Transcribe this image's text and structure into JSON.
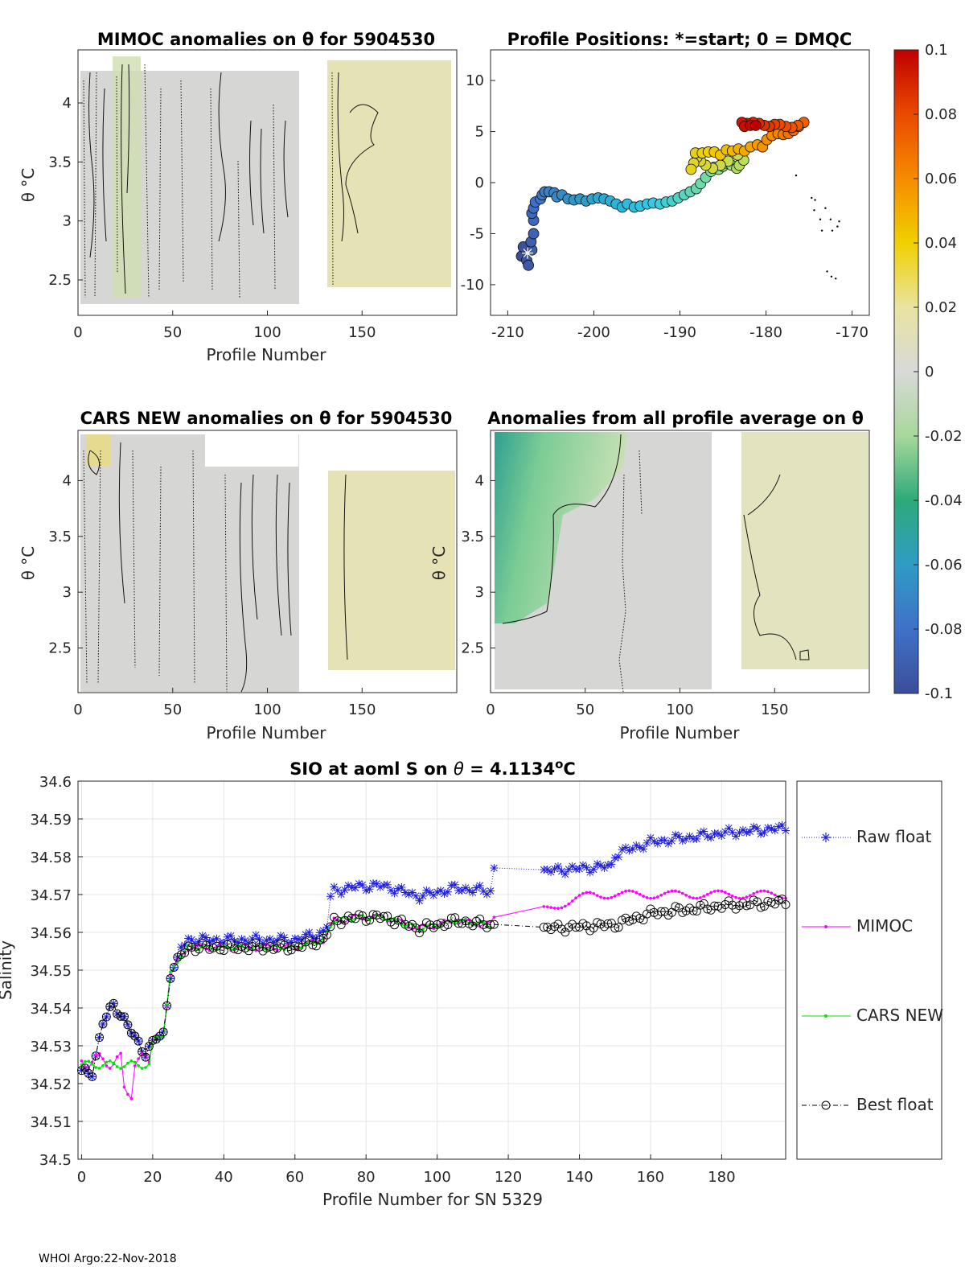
{
  "footer": "WHOI Argo:22-Nov-2018",
  "colorbar": {
    "ticks": [
      "0.1",
      "0.08",
      "0.06",
      "0.04",
      "0.02",
      "0",
      "-0.02",
      "-0.04",
      "-0.06",
      "-0.08",
      "-0.1"
    ],
    "range": [
      -0.1,
      0.1
    ]
  },
  "chart_data": [
    {
      "id": "mimoc",
      "type": "heatmap",
      "title": "MIMOC anomalies on θ  for 5904530",
      "xlabel": "Profile Number",
      "ylabel": "θ °C",
      "xlim": [
        0,
        200
      ],
      "ylim": [
        2.2,
        4.45
      ],
      "xticks": [
        "0",
        "50",
        "100",
        "150"
      ],
      "yticks": [
        "2.5",
        "3",
        "3.5",
        "4"
      ],
      "gap_profiles": [
        116,
        130
      ]
    },
    {
      "id": "positions",
      "type": "scatter",
      "title": "Profile Positions: *=start; 0 = DMQC",
      "xlim": [
        -212,
        -168
      ],
      "ylim": [
        -13,
        13
      ],
      "xticks": [
        "-210",
        "-200",
        "-190",
        "-180",
        "-170"
      ],
      "yticks": [
        "10",
        "5",
        "0",
        "-5",
        "-10"
      ],
      "start": [
        -207.7,
        -6.9
      ],
      "track": [
        [
          -208.4,
          -7.2
        ],
        [
          -208.2,
          -6.3
        ],
        [
          -207.8,
          -7.6
        ],
        [
          -207.6,
          -8.1
        ],
        [
          -207.2,
          -6.6
        ],
        [
          -207.3,
          -5.8
        ],
        [
          -207.0,
          -5.0
        ],
        [
          -207.0,
          -3.7
        ],
        [
          -207.2,
          -3.0
        ],
        [
          -207.0,
          -2.5
        ],
        [
          -206.8,
          -1.9
        ],
        [
          -206.2,
          -1.6
        ],
        [
          -206.0,
          -1.2
        ],
        [
          -205.7,
          -0.9
        ],
        [
          -205.2,
          -0.9
        ],
        [
          -204.6,
          -1.0
        ],
        [
          -204.3,
          -1.4
        ],
        [
          -203.7,
          -1.2
        ],
        [
          -203.0,
          -1.6
        ],
        [
          -202.3,
          -1.7
        ],
        [
          -201.6,
          -1.6
        ],
        [
          -200.9,
          -1.8
        ],
        [
          -200.2,
          -1.6
        ],
        [
          -199.5,
          -1.5
        ],
        [
          -198.8,
          -1.6
        ],
        [
          -198.1,
          -1.8
        ],
        [
          -197.4,
          -2.1
        ],
        [
          -196.7,
          -2.4
        ],
        [
          -196.1,
          -2.1
        ],
        [
          -195.3,
          -2.4
        ],
        [
          -194.6,
          -2.3
        ],
        [
          -193.8,
          -2.1
        ],
        [
          -193.1,
          -2.0
        ],
        [
          -192.3,
          -2.1
        ],
        [
          -191.6,
          -1.9
        ],
        [
          -190.9,
          -1.8
        ],
        [
          -190.2,
          -1.5
        ],
        [
          -189.5,
          -1.2
        ],
        [
          -188.8,
          -0.9
        ],
        [
          -188.1,
          -0.6
        ],
        [
          -187.6,
          -0.1
        ],
        [
          -187.0,
          0.5
        ],
        [
          -186.4,
          1.1
        ],
        [
          -186.0,
          1.5
        ],
        [
          -185.5,
          1.3
        ],
        [
          -185.0,
          1.6
        ],
        [
          -184.5,
          1.9
        ],
        [
          -184.0,
          1.7
        ],
        [
          -183.4,
          1.4
        ],
        [
          -183.1,
          1.7
        ],
        [
          -182.6,
          2.2
        ],
        [
          -183.3,
          2.7
        ],
        [
          -184.4,
          2.1
        ],
        [
          -185.3,
          1.7
        ],
        [
          -186.2,
          1.4
        ],
        [
          -187.0,
          1.7
        ],
        [
          -187.6,
          2.1
        ],
        [
          -188.0,
          2.5
        ],
        [
          -188.4,
          1.9
        ],
        [
          -188.7,
          1.3
        ],
        [
          -188.2,
          2.9
        ],
        [
          -187.4,
          2.9
        ],
        [
          -186.7,
          3.0
        ],
        [
          -186.0,
          3.0
        ],
        [
          -185.3,
          2.7
        ],
        [
          -184.6,
          3.2
        ],
        [
          -183.9,
          3.1
        ],
        [
          -183.2,
          3.3
        ],
        [
          -182.5,
          3.1
        ],
        [
          -181.8,
          3.5
        ],
        [
          -181.0,
          3.7
        ],
        [
          -180.4,
          3.5
        ],
        [
          -179.9,
          4.2
        ],
        [
          -179.3,
          4.6
        ],
        [
          -178.6,
          4.8
        ],
        [
          -178.0,
          4.7
        ],
        [
          -177.4,
          4.8
        ],
        [
          -176.8,
          5.1
        ],
        [
          -176.2,
          5.5
        ],
        [
          -175.6,
          5.9
        ],
        [
          -176.3,
          5.6
        ],
        [
          -177.0,
          5.4
        ],
        [
          -177.7,
          5.5
        ],
        [
          -178.4,
          5.7
        ],
        [
          -179.0,
          5.7
        ],
        [
          -179.6,
          5.5
        ],
        [
          -180.2,
          5.6
        ],
        [
          -180.8,
          5.8
        ],
        [
          -181.5,
          5.9
        ],
        [
          -182.2,
          5.8
        ],
        [
          -182.8,
          5.9
        ],
        [
          -182.5,
          5.5
        ],
        [
          -181.8,
          5.6
        ],
        [
          -181.2,
          5.6
        ]
      ],
      "extra_points": [
        [
          -176.5,
          0.7
        ],
        [
          -174.7,
          -1.5
        ],
        [
          -174.3,
          -1.7
        ],
        [
          -174.4,
          -2.7
        ],
        [
          -173.1,
          -2.5
        ],
        [
          -173.7,
          -3.6
        ],
        [
          -172.5,
          -3.6
        ],
        [
          -173.5,
          -4.7
        ],
        [
          -171.5,
          -3.8
        ],
        [
          -171.7,
          -4.3
        ],
        [
          -172.3,
          -4.7
        ],
        [
          -172.9,
          -8.7
        ],
        [
          -172.4,
          -9.2
        ],
        [
          -171.9,
          -9.4
        ]
      ]
    },
    {
      "id": "cars",
      "type": "heatmap",
      "title": "CARS NEW anomalies on θ for 5904530",
      "xlabel": "Profile Number",
      "ylabel": "θ °C",
      "xlim": [
        0,
        200
      ],
      "ylim": [
        2.1,
        4.45
      ],
      "xticks": [
        "0",
        "50",
        "100",
        "150"
      ],
      "yticks": [
        "2.5",
        "3",
        "3.5",
        "4"
      ],
      "gap_profiles": [
        116,
        130
      ]
    },
    {
      "id": "avg",
      "type": "heatmap",
      "title": "Anomalies from all profile average on θ",
      "xlabel": "Profile Number",
      "ylabel": "θ °C",
      "xlim": [
        0,
        200
      ],
      "ylim": [
        2.1,
        4.45
      ],
      "xticks": [
        "0",
        "50",
        "100",
        "150"
      ],
      "yticks": [
        "2.5",
        "3",
        "3.5",
        "4"
      ],
      "gap_profiles": [
        116,
        130
      ]
    },
    {
      "id": "salinity",
      "type": "line",
      "title": "SIO at aoml S on θ = 4.1134°C",
      "title_prefix": "SIO at aoml S on",
      "title_theta": "θ",
      "title_value": "= 4.1134",
      "title_sup": "o",
      "title_unit": "C",
      "xlabel": "Profile Number for SN 5329",
      "ylabel": "Salinity",
      "xlim": [
        -1,
        198
      ],
      "ylim": [
        34.5,
        34.6
      ],
      "xticks": [
        "0",
        "20",
        "40",
        "60",
        "80",
        "100",
        "120",
        "140",
        "160",
        "180"
      ],
      "yticks": [
        "34.6",
        "34.59",
        "34.58",
        "34.57",
        "34.56",
        "34.55",
        "34.54",
        "34.53",
        "34.52",
        "34.51",
        "34.5"
      ],
      "legend_position": "right",
      "series": [
        {
          "name": "Raw float",
          "color": "#1f1fdb",
          "style": "dotted-star"
        },
        {
          "name": "MIMOC",
          "color": "#ff00ff",
          "style": "solid-dot"
        },
        {
          "name": "CARS NEW",
          "color": "#00e600",
          "style": "solid-dot"
        },
        {
          "name": "Best float",
          "color": "#000000",
          "style": "dashdot-circle"
        }
      ]
    }
  ]
}
